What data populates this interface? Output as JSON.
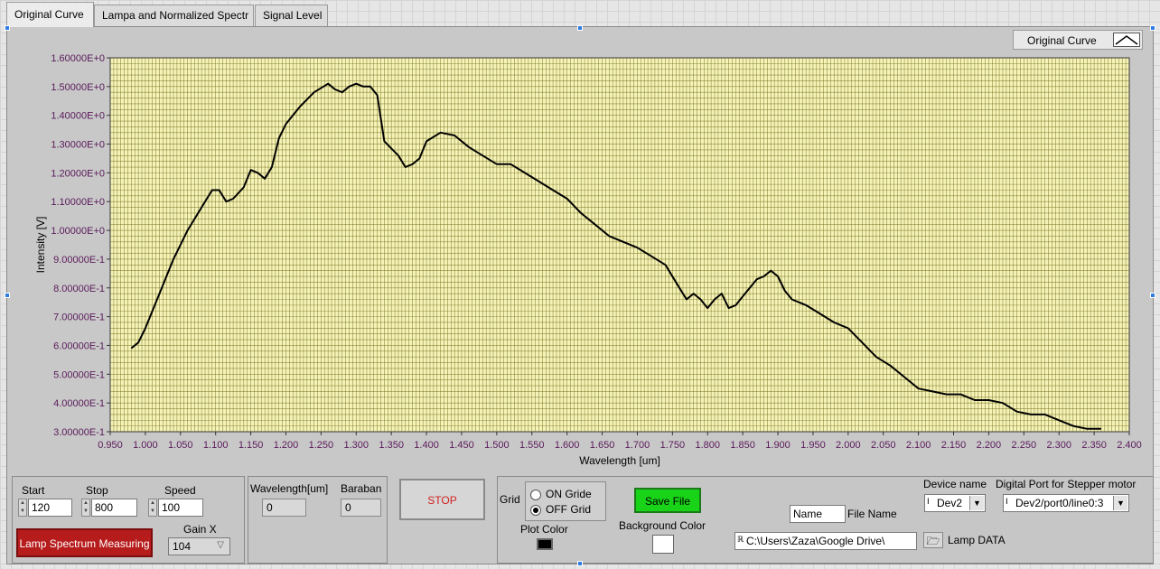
{
  "tabs": [
    {
      "label": "Original Curve",
      "active": true
    },
    {
      "label": "Lampa and Normalized Spectr",
      "active": false
    },
    {
      "label": "Signal Level",
      "active": false
    }
  ],
  "legend": {
    "label": "Original Curve"
  },
  "chart_data": {
    "type": "line",
    "xlabel": "Wavelength [um]",
    "ylabel": "Intensity [V]",
    "xlim": [
      0.95,
      2.4
    ],
    "ylim": [
      0.3,
      1.6
    ],
    "grid": true,
    "legend": "top-right",
    "xticks": [
      "0.950",
      "1.000",
      "1.050",
      "1.100",
      "1.150",
      "1.200",
      "1.250",
      "1.300",
      "1.350",
      "1.400",
      "1.450",
      "1.500",
      "1.550",
      "1.600",
      "1.650",
      "1.700",
      "1.750",
      "1.800",
      "1.850",
      "1.900",
      "1.950",
      "2.000",
      "2.050",
      "2.100",
      "2.150",
      "2.200",
      "2.250",
      "2.300",
      "2.350",
      "2.400"
    ],
    "yticks": [
      "1.60000E+0",
      "1.50000E+0",
      "1.40000E+0",
      "1.30000E+0",
      "1.20000E+0",
      "1.10000E+0",
      "1.00000E+0",
      "9.00000E-1",
      "8.00000E-1",
      "7.00000E-1",
      "6.00000E-1",
      "5.00000E-1",
      "4.00000E-1",
      "3.00000E-1"
    ],
    "series": [
      {
        "line_color": "#000000",
        "x": [
          0.98,
          0.99,
          1.0,
          1.02,
          1.04,
          1.06,
          1.08,
          1.095,
          1.105,
          1.115,
          1.125,
          1.14,
          1.15,
          1.16,
          1.17,
          1.18,
          1.19,
          1.2,
          1.22,
          1.24,
          1.26,
          1.27,
          1.28,
          1.29,
          1.3,
          1.31,
          1.32,
          1.33,
          1.34,
          1.36,
          1.37,
          1.38,
          1.39,
          1.4,
          1.42,
          1.44,
          1.46,
          1.48,
          1.5,
          1.52,
          1.54,
          1.56,
          1.58,
          1.6,
          1.62,
          1.64,
          1.66,
          1.68,
          1.7,
          1.72,
          1.74,
          1.76,
          1.77,
          1.78,
          1.79,
          1.8,
          1.81,
          1.82,
          1.83,
          1.84,
          1.85,
          1.86,
          1.87,
          1.88,
          1.89,
          1.9,
          1.91,
          1.92,
          1.94,
          1.96,
          1.98,
          2.0,
          2.02,
          2.04,
          2.06,
          2.08,
          2.1,
          2.12,
          2.14,
          2.16,
          2.18,
          2.2,
          2.22,
          2.24,
          2.26,
          2.28,
          2.3,
          2.32,
          2.34,
          2.36
        ],
        "y": [
          0.59,
          0.61,
          0.66,
          0.78,
          0.9,
          1.0,
          1.08,
          1.14,
          1.14,
          1.1,
          1.11,
          1.15,
          1.21,
          1.2,
          1.18,
          1.22,
          1.32,
          1.37,
          1.43,
          1.48,
          1.51,
          1.49,
          1.48,
          1.5,
          1.51,
          1.5,
          1.5,
          1.47,
          1.31,
          1.26,
          1.22,
          1.23,
          1.25,
          1.31,
          1.34,
          1.33,
          1.29,
          1.26,
          1.23,
          1.23,
          1.2,
          1.17,
          1.14,
          1.11,
          1.06,
          1.02,
          0.98,
          0.96,
          0.94,
          0.91,
          0.88,
          0.8,
          0.76,
          0.78,
          0.76,
          0.73,
          0.76,
          0.78,
          0.73,
          0.74,
          0.77,
          0.8,
          0.83,
          0.84,
          0.86,
          0.84,
          0.79,
          0.76,
          0.74,
          0.71,
          0.68,
          0.66,
          0.61,
          0.56,
          0.53,
          0.49,
          0.45,
          0.44,
          0.43,
          0.43,
          0.41,
          0.41,
          0.4,
          0.37,
          0.36,
          0.36,
          0.34,
          0.32,
          0.31,
          0.31
        ]
      }
    ]
  },
  "controls": {
    "start_label": "Start",
    "start_value": "120",
    "stop_label": "Stop",
    "stop_value": "800",
    "speed_label": "Speed",
    "speed_value": "100",
    "gain_label": "Gain X",
    "gain_value": "104",
    "measure_button": "Lamp Spectrum Measuring",
    "wavelength_label": "Wavelength[um]",
    "wavelength_value": "0",
    "baraban_label": "Baraban",
    "baraban_value": "0",
    "stop_button": "STOP",
    "grid_label": "Grid",
    "grid_on": "ON Gride",
    "grid_off": "OFF Grid",
    "plot_color_label": "Plot Color",
    "save_button": "Save File",
    "background_color_label": "Background Color",
    "name_value": "Name",
    "file_name_label": "File Name",
    "path_value": "C:\\Users\\Zaza\\Google Drive\\",
    "lamp_data_label": "Lamp DATA",
    "device_label": "Device name",
    "device_value": "Dev2",
    "port_label": "Digital Port for Stepper motor",
    "port_value": "Dev2/port0/line0:3"
  },
  "colors": {
    "plot_bg": "#f6f3b8",
    "grid": "#6e6a18",
    "axis_text": "#5a1a5a",
    "plot_color_swatch": "#000000",
    "background_color_swatch": "#ffffff"
  }
}
